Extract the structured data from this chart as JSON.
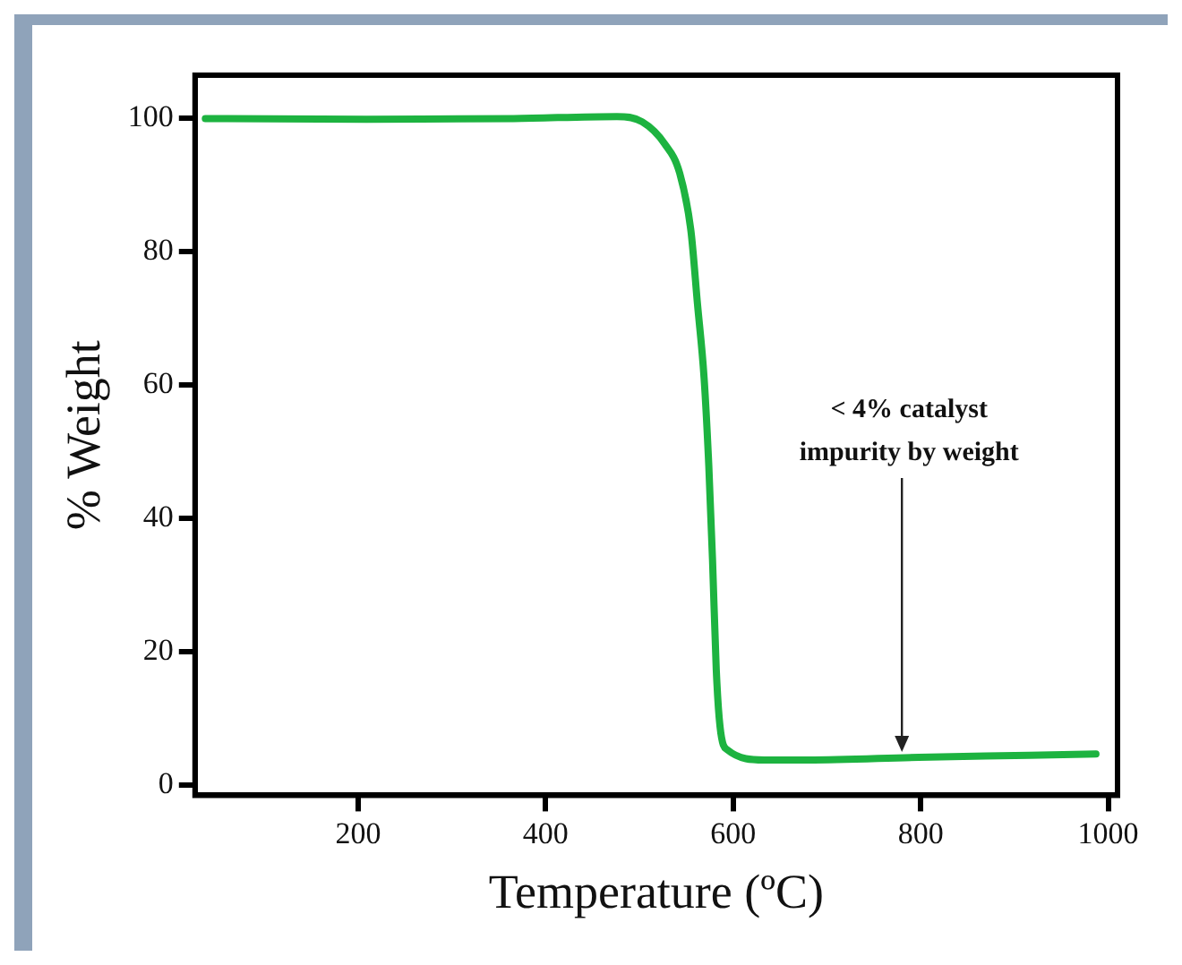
{
  "chart_data": {
    "type": "line",
    "xlabel": "Temperature (ºC)",
    "ylabel": "% Weight",
    "x": [
      37,
      209,
      366,
      476,
      503,
      527,
      543,
      555,
      562,
      569,
      574,
      578,
      582,
      586,
      594,
      633,
      680,
      798,
      916,
      987
    ],
    "series": [
      {
        "color": "#1db340",
        "values": [
          100,
          99.9,
          100,
          100.3,
          99.5,
          96.2,
          91.8,
          83.1,
          72.1,
          61.1,
          48,
          33.8,
          17.3,
          8.8,
          5.3,
          3.8,
          3.8,
          4.2,
          4.5,
          4.7
        ]
      }
    ],
    "xlim": [
      26,
      1010
    ],
    "xticks": [
      200,
      400,
      600,
      800,
      1000
    ],
    "ylim": [
      -1.5,
      106.5
    ],
    "yticks": [
      0,
      20,
      40,
      60,
      80,
      100
    ],
    "annotations": [
      {
        "text": "< 4% catalyst impurity by weight",
        "x": 780,
        "y": 4.2
      }
    ],
    "grid": false,
    "legend": false,
    "marker": "none",
    "line_style": "solid"
  }
}
